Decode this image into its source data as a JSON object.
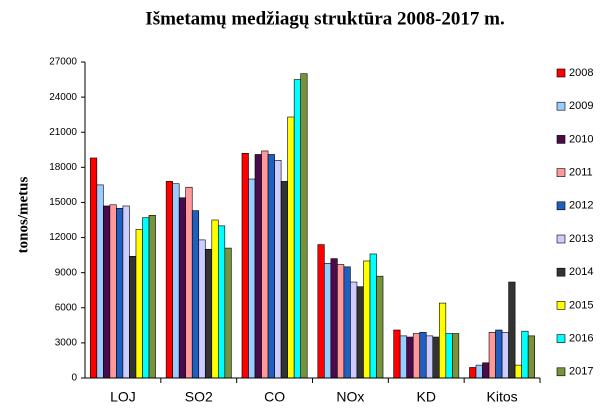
{
  "chart_data": {
    "type": "bar",
    "title": "Išmetamų medžiagų struktūra 2008-2017 m.",
    "y_label": "tonos/metus",
    "categories": [
      "LOJ",
      "SO2",
      "CO",
      "NOx",
      "KD",
      "Kitos"
    ],
    "series": [
      {
        "name": "2008",
        "color": "#ff0000",
        "values": [
          18800,
          16800,
          19200,
          11400,
          4100,
          900
        ]
      },
      {
        "name": "2009",
        "color": "#99ccff",
        "values": [
          16500,
          16600,
          17000,
          9800,
          3600,
          1100
        ]
      },
      {
        "name": "2010",
        "color": "#4b0a4b",
        "values": [
          14700,
          15400,
          19100,
          10200,
          3500,
          1300
        ]
      },
      {
        "name": "2011",
        "color": "#ff9999",
        "values": [
          14800,
          16300,
          19400,
          9700,
          3800,
          3900
        ]
      },
      {
        "name": "2012",
        "color": "#1f5fbf",
        "values": [
          14500,
          14300,
          19100,
          9500,
          3900,
          4100
        ]
      },
      {
        "name": "2013",
        "color": "#ccccff",
        "values": [
          14700,
          11800,
          18600,
          8200,
          3600,
          3900
        ]
      },
      {
        "name": "2014",
        "color": "#333333",
        "values": [
          10400,
          11000,
          16800,
          7800,
          3500,
          8200
        ]
      },
      {
        "name": "2015",
        "color": "#ffff00",
        "values": [
          12700,
          13500,
          22300,
          10000,
          6400,
          1100
        ]
      },
      {
        "name": "2016",
        "color": "#00ffff",
        "values": [
          13700,
          13000,
          25500,
          10600,
          3800,
          4000
        ]
      },
      {
        "name": "2017",
        "color": "#77933c",
        "values": [
          13900,
          11100,
          26000,
          8700,
          3800,
          3600
        ]
      }
    ],
    "ylim": [
      0,
      27000
    ],
    "yticks": [
      0,
      3000,
      6000,
      9000,
      12000,
      15000,
      18000,
      21000,
      24000,
      27000
    ],
    "grid": false,
    "legend": "right"
  }
}
